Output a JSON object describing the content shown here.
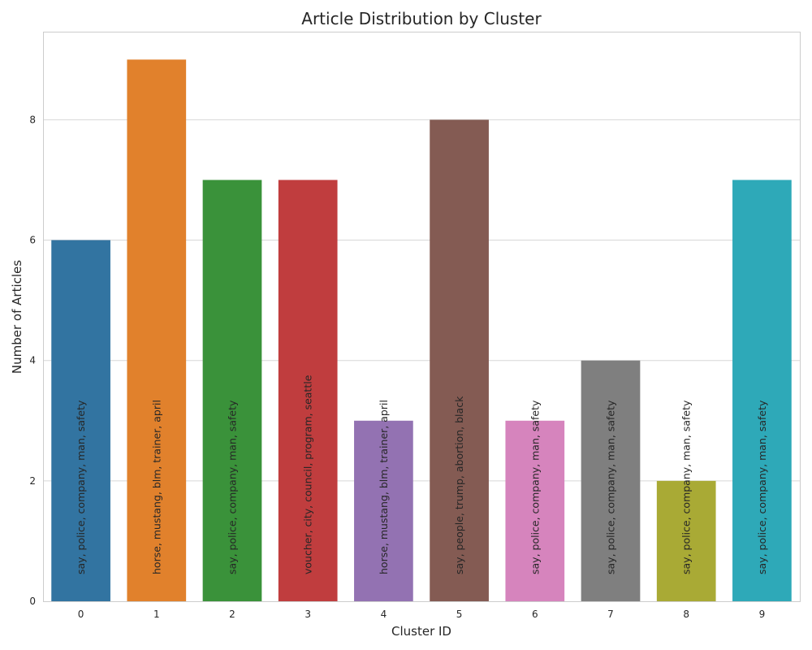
{
  "chart_data": {
    "type": "bar",
    "title": "Article Distribution by Cluster",
    "xlabel": "Cluster ID",
    "ylabel": "Number of Articles",
    "categories": [
      "0",
      "1",
      "2",
      "3",
      "4",
      "5",
      "6",
      "7",
      "8",
      "9"
    ],
    "values": [
      6,
      9,
      7,
      7,
      3,
      8,
      3,
      4,
      2,
      7
    ],
    "bar_labels": [
      "say, police, company, man, safety",
      "horse, mustang, blm, trainer, april",
      "say, police, company, man, safety",
      "voucher, city, council, program, seattle",
      "horse, mustang, blm, trainer, april",
      "say, people, trump, abortion, black",
      "say, police, company, man, safety",
      "say, police, company, man, safety",
      "say, police, company, man, safety",
      "say, police, company, man, safety"
    ],
    "colors": [
      "#3274a1",
      "#e1812c",
      "#3a923a",
      "#c03d3e",
      "#9372b2",
      "#845b53",
      "#d684bd",
      "#7f7f7f",
      "#a9aa35",
      "#2ea9b8"
    ],
    "yticks": [
      0,
      2,
      4,
      6,
      8
    ],
    "ylim": [
      0,
      9.45
    ],
    "grid": "horizontal",
    "legend": "none"
  }
}
